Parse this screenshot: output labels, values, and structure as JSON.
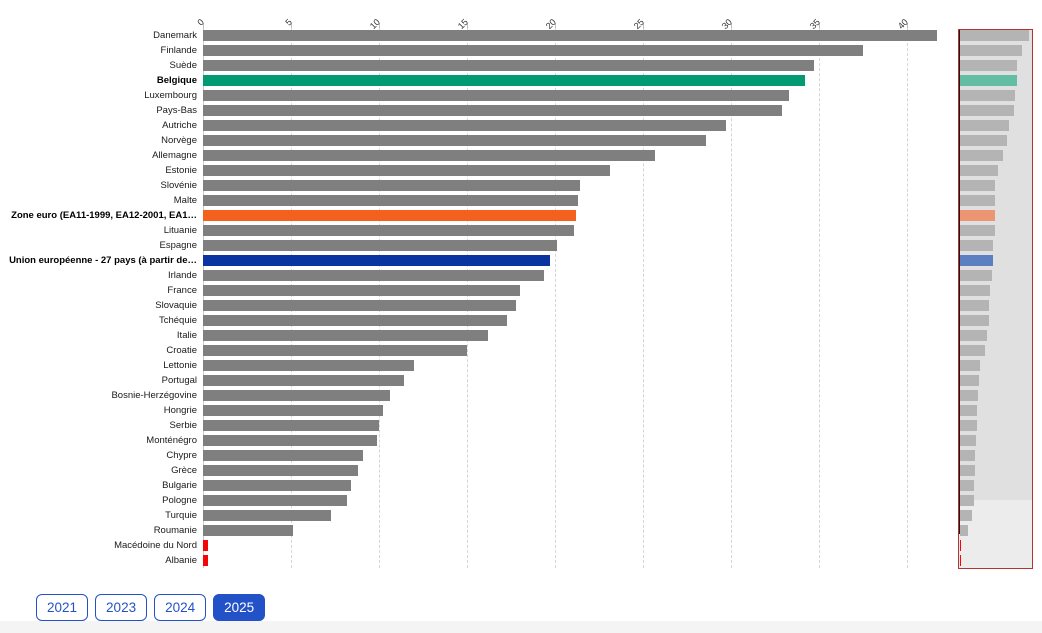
{
  "chart_data": {
    "type": "bar",
    "orientation": "horizontal",
    "title": "",
    "xlabel": "",
    "ylabel": "",
    "xlim": [
      0,
      42
    ],
    "x_ticks": [
      0,
      5,
      10,
      15,
      20,
      25,
      30,
      35,
      40
    ],
    "grid": true,
    "legend": "none",
    "rows": [
      {
        "label": "Danemark",
        "value": 41.7,
        "color_key": "default",
        "bold": false
      },
      {
        "label": "Finlande",
        "value": 37.5,
        "color_key": "default",
        "bold": false
      },
      {
        "label": "Suède",
        "value": 34.7,
        "color_key": "default",
        "bold": false
      },
      {
        "label": "Belgique",
        "value": 34.2,
        "color_key": "belgique",
        "bold": true
      },
      {
        "label": "Luxembourg",
        "value": 33.3,
        "color_key": "default",
        "bold": false
      },
      {
        "label": "Pays-Bas",
        "value": 32.9,
        "color_key": "default",
        "bold": false
      },
      {
        "label": "Autriche",
        "value": 29.7,
        "color_key": "default",
        "bold": false
      },
      {
        "label": "Norvège",
        "value": 28.6,
        "color_key": "default",
        "bold": false
      },
      {
        "label": "Allemagne",
        "value": 25.7,
        "color_key": "default",
        "bold": false
      },
      {
        "label": "Estonie",
        "value": 23.1,
        "color_key": "default",
        "bold": false
      },
      {
        "label": "Slovénie",
        "value": 21.4,
        "color_key": "default",
        "bold": false
      },
      {
        "label": "Malte",
        "value": 21.3,
        "color_key": "default",
        "bold": false
      },
      {
        "label": "Zone euro (EA11-1999, EA12-2001, EA1…",
        "value": 21.2,
        "color_key": "zone_euro",
        "bold": true
      },
      {
        "label": "Lituanie",
        "value": 21.1,
        "color_key": "default",
        "bold": false
      },
      {
        "label": "Espagne",
        "value": 20.1,
        "color_key": "default",
        "bold": false
      },
      {
        "label": "Union européenne - 27 pays (à partir de…",
        "value": 19.7,
        "color_key": "union_europeenne",
        "bold": true
      },
      {
        "label": "Irlande",
        "value": 19.4,
        "color_key": "default",
        "bold": false
      },
      {
        "label": "France",
        "value": 18.0,
        "color_key": "default",
        "bold": false
      },
      {
        "label": "Slovaquie",
        "value": 17.8,
        "color_key": "default",
        "bold": false
      },
      {
        "label": "Tchéquie",
        "value": 17.3,
        "color_key": "default",
        "bold": false
      },
      {
        "label": "Italie",
        "value": 16.2,
        "color_key": "default",
        "bold": false
      },
      {
        "label": "Croatie",
        "value": 15.0,
        "color_key": "default",
        "bold": false
      },
      {
        "label": "Lettonie",
        "value": 12.0,
        "color_key": "default",
        "bold": false
      },
      {
        "label": "Portugal",
        "value": 11.4,
        "color_key": "default",
        "bold": false
      },
      {
        "label": "Bosnie-Herzégovine",
        "value": 10.6,
        "color_key": "default",
        "bold": false
      },
      {
        "label": "Hongrie",
        "value": 10.2,
        "color_key": "default",
        "bold": false
      },
      {
        "label": "Serbie",
        "value": 10.0,
        "color_key": "default",
        "bold": false
      },
      {
        "label": "Monténégro",
        "value": 9.9,
        "color_key": "default",
        "bold": false
      },
      {
        "label": "Chypre",
        "value": 9.1,
        "color_key": "default",
        "bold": false
      },
      {
        "label": "Grèce",
        "value": 8.8,
        "color_key": "default",
        "bold": false
      },
      {
        "label": "Bulgarie",
        "value": 8.4,
        "color_key": "default",
        "bold": false
      },
      {
        "label": "Pologne",
        "value": 8.2,
        "color_key": "default",
        "bold": false
      },
      {
        "label": "Turquie",
        "value": 7.3,
        "color_key": "default",
        "bold": false
      },
      {
        "label": "Roumanie",
        "value": 5.1,
        "color_key": "default",
        "bold": false
      },
      {
        "label": "Macédoine du Nord",
        "value": 0.3,
        "color_key": "alert",
        "bold": false
      },
      {
        "label": "Albanie",
        "value": 0.3,
        "color_key": "alert",
        "bold": false
      }
    ]
  },
  "colors": {
    "bars": {
      "default": "#7f7f7f",
      "belgique": "#029a72",
      "zone_euro": "#f4611e",
      "union_europeenne": "#0a35a0",
      "alert": "#f50505"
    },
    "minimap_bars": {
      "default": "#b4b4b4",
      "belgique": "#63bda2",
      "zone_euro": "#eb9572",
      "union_europeenne": "#5c7fc2",
      "alert": "#f50505"
    },
    "minimap_bg_top": "#e0e0e0",
    "minimap_bg_bottom": "#ececec",
    "minimap_frame": "#b73333",
    "grid": "#d4d4d4",
    "button_blue": "#2352c8"
  },
  "year_buttons": [
    {
      "label": "2021",
      "active": false
    },
    {
      "label": "2023",
      "active": false
    },
    {
      "label": "2024",
      "active": false
    },
    {
      "label": "2025",
      "active": true
    }
  ]
}
